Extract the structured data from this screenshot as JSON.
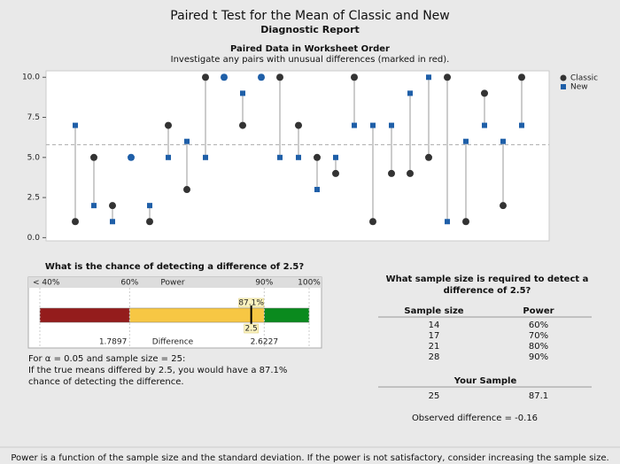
{
  "header": {
    "title": "Paired t Test for the Mean of Classic and New",
    "subtitle": "Diagnostic Report"
  },
  "chart_data": [
    {
      "type": "paired",
      "title": "Paired Data in Worksheet Order",
      "subtitle": "Investigate any pairs with unusual differences (marked in red).",
      "series": [
        {
          "name": "Classic",
          "color": "#333333",
          "values": [
            1,
            5,
            2,
            5,
            1,
            7,
            3,
            10,
            10,
            7,
            10,
            10,
            7,
            5,
            4,
            10,
            1,
            4,
            4,
            5,
            10,
            1,
            9,
            2,
            10
          ]
        },
        {
          "name": "New",
          "color": "#1f5fa8",
          "values": [
            7,
            2,
            1,
            5,
            2,
            5,
            6,
            5,
            10,
            9,
            10,
            5,
            5,
            3,
            5,
            7,
            7,
            7,
            9,
            10,
            1,
            6,
            7,
            6,
            7
          ]
        }
      ],
      "reference_line": 5.8,
      "ylim": [
        -0.2,
        10.4
      ],
      "yticks": [
        {
          "value": 0,
          "label": "0.0"
        },
        {
          "value": 2.5,
          "label": "2.5"
        },
        {
          "value": 5,
          "label": "5.0"
        },
        {
          "value": 7.5,
          "label": "7.5"
        },
        {
          "value": 10,
          "label": "10.0"
        }
      ],
      "legend": "upper right"
    },
    {
      "type": "gauge",
      "title": "What is the chance of detecting a difference of 2.5?",
      "axis_label": "Power",
      "xlim": [
        40,
        100
      ],
      "xticks": [
        {
          "value": 40,
          "label": "< 40%"
        },
        {
          "value": 60,
          "label": "60%"
        },
        {
          "value": 90,
          "label": "90%"
        },
        {
          "value": 100,
          "label": "100%"
        }
      ],
      "zones": [
        {
          "from": 40,
          "to": 60,
          "color": "#941c1c"
        },
        {
          "from": 60,
          "to": 90,
          "color": "#f7c744"
        },
        {
          "from": 90,
          "to": 100,
          "color": "#0a8a1e"
        }
      ],
      "difference_label": "Difference",
      "difference_ticks": [
        {
          "value": 60,
          "label": "1.7897"
        },
        {
          "value": 90,
          "label": "2.6227"
        }
      ],
      "value": 87.1,
      "value_label": "87.1%",
      "difference": 2.5
    }
  ],
  "left_text": {
    "line1": "For α = 0.05 and sample size = 25:",
    "line2": "If the true means differed by 2.5, you would have a 87.1% chance of detecting the difference."
  },
  "table": {
    "title": "What sample size is required to detect a difference of 2.5?",
    "columns": [
      "Sample size",
      "Power"
    ],
    "rows": [
      [
        "14",
        "60%"
      ],
      [
        "17",
        "70%"
      ],
      [
        "21",
        "80%"
      ],
      [
        "28",
        "90%"
      ]
    ],
    "your_sample_title": "Your Sample",
    "your_sample": [
      "25",
      "87.1"
    ],
    "observed": "Observed difference = -0.16"
  },
  "footnote": "Power is a function of the sample size and the standard deviation. If the power is not satisfactory, consider increasing the sample size."
}
